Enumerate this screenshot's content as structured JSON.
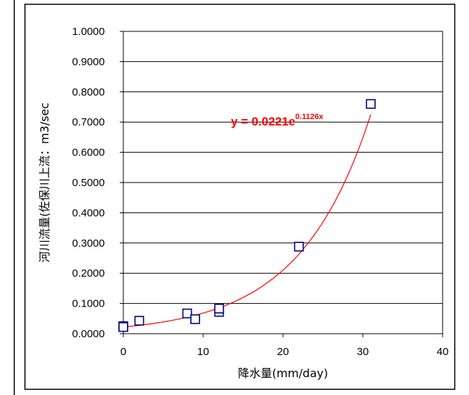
{
  "chart_data": {
    "type": "scatter",
    "title": "",
    "xlabel": "降水量(mm/day)",
    "ylabel": "河川流量(佐保川上流：m3/sec",
    "xlim": [
      0,
      40
    ],
    "ylim": [
      0,
      1
    ],
    "x_ticks": [
      "0",
      "10",
      "20",
      "30",
      "40"
    ],
    "y_ticks": [
      "0.0000",
      "0.1000",
      "0.2000",
      "0.3000",
      "0.4000",
      "0.5000",
      "0.6000",
      "0.7000",
      "0.8000",
      "0.9000",
      "1.0000"
    ],
    "grid": "horizontal",
    "series": [
      {
        "marker": "open-square",
        "color": "#000080",
        "points": [
          {
            "x": 0,
            "y": 0.025
          },
          {
            "x": 0,
            "y": 0.022
          },
          {
            "x": 2,
            "y": 0.043
          },
          {
            "x": 8,
            "y": 0.067
          },
          {
            "x": 9,
            "y": 0.048
          },
          {
            "x": 12,
            "y": 0.072
          },
          {
            "x": 12,
            "y": 0.083
          },
          {
            "x": 22,
            "y": 0.288
          },
          {
            "x": 31,
            "y": 0.76
          }
        ]
      }
    ],
    "trendline": {
      "kind": "exponential",
      "a": 0.0221,
      "b": 0.1126,
      "x_range": [
        0,
        31
      ],
      "color": "#ff0000",
      "equation_main": "y = 0.0221e",
      "equation_exp": "0.1126x"
    }
  }
}
